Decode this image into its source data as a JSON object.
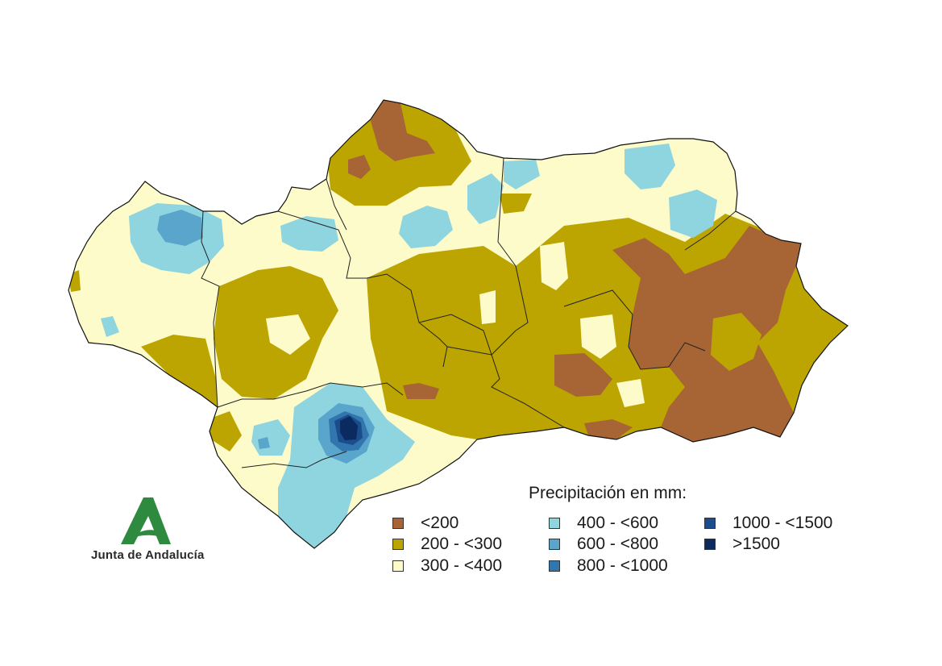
{
  "legend": {
    "title": "Precipitación en mm:",
    "items": [
      {
        "label": "<200",
        "color": "#a76535"
      },
      {
        "label": "200 - <300",
        "color": "#bca500"
      },
      {
        "label": "300 - <400",
        "color": "#fdfbc9"
      },
      {
        "label": "400 - <600",
        "color": "#8ed5e0"
      },
      {
        "label": "600 - <800",
        "color": "#5aa5cc"
      },
      {
        "label": "800 - <1000",
        "color": "#3276ae"
      },
      {
        "label": "1000 - <1500",
        "color": "#1b4d8c"
      },
      {
        "label": ">1500",
        "color": "#0a2a60"
      }
    ]
  },
  "logo": {
    "text": "Junta de Andalucía",
    "color": "#2d8a3e"
  }
}
